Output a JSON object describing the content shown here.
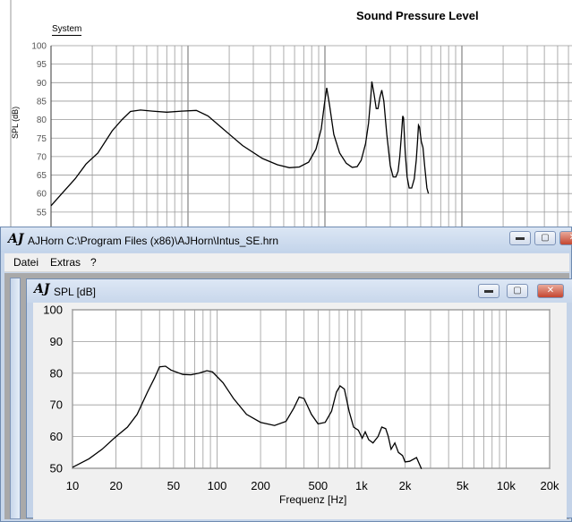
{
  "background_window": {
    "title": "Sound Pressure Level",
    "tab_label": "System",
    "y_axis_label": "SPL (dB)"
  },
  "main_window": {
    "logo": "AJ",
    "title": "AJHorn  C:\\Program Files (x86)\\AJHorn\\Intus_SE.hrn",
    "menu": [
      "Datei",
      "Extras",
      "?"
    ],
    "controls": {
      "minimize": "▬",
      "maximize": "▢",
      "close": "✕"
    }
  },
  "child_window": {
    "logo": "AJ",
    "title": "SPL [dB]",
    "x_axis_label": "Frequenz [Hz]"
  },
  "chart_data": [
    {
      "type": "line",
      "scale_x": "log",
      "ylabel": "SPL (dB)",
      "y_ticks": [
        55,
        60,
        65,
        70,
        75,
        80,
        85,
        90,
        95,
        100
      ],
      "ylim": [
        52,
        100
      ],
      "grid": true,
      "series": [
        {
          "points": [
            [
              10,
              56.7
            ],
            [
              12,
              60
            ],
            [
              15,
              64
            ],
            [
              18,
              68
            ],
            [
              22,
              71
            ],
            [
              28,
              77
            ],
            [
              33,
              80
            ],
            [
              38,
              82.2
            ],
            [
              45,
              82.6
            ],
            [
              55,
              82.3
            ],
            [
              70,
              82
            ],
            [
              90,
              82.3
            ],
            [
              115,
              82.5
            ],
            [
              140,
              81
            ],
            [
              180,
              77.5
            ],
            [
              250,
              73
            ],
            [
              350,
              69.5
            ],
            [
              450,
              67.8
            ],
            [
              550,
              67
            ],
            [
              650,
              67.2
            ],
            [
              760,
              68.5
            ],
            [
              860,
              72
            ],
            [
              940,
              77.5
            ],
            [
              990,
              84
            ],
            [
              1030,
              88.6
            ],
            [
              1080,
              84
            ],
            [
              1160,
              76
            ],
            [
              1280,
              71
            ],
            [
              1430,
              68.2
            ],
            [
              1580,
              67.1
            ],
            [
              1720,
              67.3
            ],
            [
              1840,
              69
            ],
            [
              1980,
              73.5
            ],
            [
              2080,
              79
            ],
            [
              2160,
              86
            ],
            [
              2200,
              90.3
            ],
            [
              2280,
              87
            ],
            [
              2370,
              83
            ],
            [
              2440,
              83
            ],
            [
              2520,
              86
            ],
            [
              2600,
              88
            ],
            [
              2690,
              85
            ],
            [
              2830,
              76
            ],
            [
              3000,
              67.5
            ],
            [
              3150,
              64.5
            ],
            [
              3300,
              64.5
            ],
            [
              3420,
              66
            ],
            [
              3520,
              70
            ],
            [
              3620,
              76
            ],
            [
              3700,
              81
            ],
            [
              3750,
              80.5
            ],
            [
              3860,
              71
            ],
            [
              3980,
              64.5
            ],
            [
              4120,
              61.5
            ],
            [
              4300,
              61.5
            ],
            [
              4490,
              64
            ],
            [
              4640,
              69
            ],
            [
              4740,
              74
            ],
            [
              4820,
              78.5
            ],
            [
              4900,
              78
            ],
            [
              5060,
              74
            ],
            [
              5200,
              72.5
            ],
            [
              5360,
              67
            ],
            [
              5550,
              61.5
            ],
            [
              5700,
              60
            ]
          ]
        }
      ]
    },
    {
      "type": "line",
      "scale_x": "log",
      "xlabel": "Frequenz [Hz]",
      "x_ticks": [
        10,
        20,
        50,
        100,
        200,
        500,
        1000,
        2000,
        5000,
        10000,
        20000
      ],
      "x_tick_labels": [
        "10",
        "20",
        "50",
        "100",
        "200",
        "500",
        "1k",
        "2k",
        "5k",
        "10k",
        "20k"
      ],
      "y_ticks": [
        50,
        60,
        70,
        80,
        90,
        100
      ],
      "xlim": [
        10,
        20000
      ],
      "ylim": [
        50,
        100
      ],
      "grid": true,
      "series": [
        {
          "points": [
            [
              10,
              50.3
            ],
            [
              13,
              53
            ],
            [
              16,
              56
            ],
            [
              20,
              60
            ],
            [
              24,
              63
            ],
            [
              28,
              67
            ],
            [
              33,
              74
            ],
            [
              37,
              78.5
            ],
            [
              40,
              82
            ],
            [
              44,
              82.2
            ],
            [
              48,
              81
            ],
            [
              58,
              79.6
            ],
            [
              66,
              79.5
            ],
            [
              75,
              80
            ],
            [
              85,
              80.8
            ],
            [
              93,
              80.4
            ],
            [
              110,
              77
            ],
            [
              130,
              72
            ],
            [
              160,
              67
            ],
            [
              200,
              64.5
            ],
            [
              250,
              63.5
            ],
            [
              300,
              64.8
            ],
            [
              340,
              69
            ],
            [
              370,
              72.5
            ],
            [
              400,
              72
            ],
            [
              450,
              67
            ],
            [
              500,
              64
            ],
            [
              560,
              64.5
            ],
            [
              620,
              68
            ],
            [
              670,
              74
            ],
            [
              710,
              76
            ],
            [
              760,
              75
            ],
            [
              820,
              68
            ],
            [
              880,
              63
            ],
            [
              950,
              62
            ],
            [
              1010,
              59.5
            ],
            [
              1060,
              61.5
            ],
            [
              1120,
              59
            ],
            [
              1200,
              58
            ],
            [
              1300,
              60
            ],
            [
              1380,
              63
            ],
            [
              1470,
              62.5
            ],
            [
              1530,
              60
            ],
            [
              1600,
              56
            ],
            [
              1700,
              58
            ],
            [
              1800,
              55
            ],
            [
              1920,
              54
            ],
            [
              2000,
              52
            ],
            [
              2150,
              52.2
            ],
            [
              2400,
              53.4
            ],
            [
              2600,
              49.8
            ]
          ]
        }
      ]
    }
  ]
}
